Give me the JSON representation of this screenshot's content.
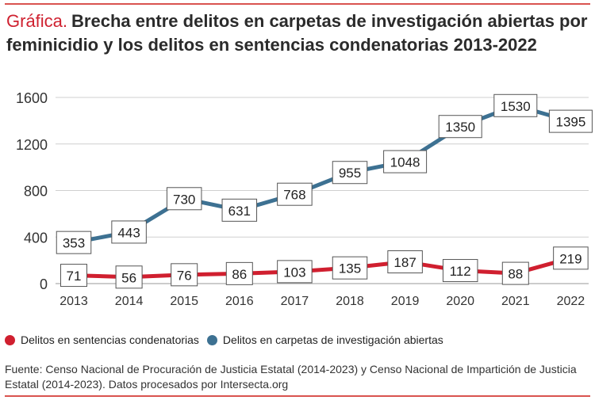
{
  "header": {
    "lead": "Gráfica.",
    "title": "Brecha entre delitos en carpetas de investigación abiertas por feminicidio y los delitos en sentencias condenatorias",
    "years": "2013-2022"
  },
  "colors": {
    "accent": "#cf2130",
    "red_series": "#d01f2f",
    "blue_series": "#3d7192",
    "grid": "#cfcfcf",
    "axis_text": "#333333"
  },
  "chart_data": {
    "type": "line",
    "title": "",
    "xlabel": "",
    "ylabel": "",
    "categories": [
      "2013",
      "2014",
      "2015",
      "2016",
      "2017",
      "2018",
      "2019",
      "2020",
      "2021",
      "2022"
    ],
    "ylim": [
      0,
      1600
    ],
    "yticks": [
      "0",
      "400",
      "800",
      "1200",
      "1600"
    ],
    "grid": true,
    "legend_placement": "bottom-left",
    "series": [
      {
        "name": "Delitos en sentencias condenatorias",
        "color": "#d01f2f",
        "values": [
          71,
          56,
          76,
          86,
          103,
          135,
          187,
          112,
          88,
          219
        ],
        "labels": [
          "71",
          "56",
          "76",
          "86",
          "103",
          "135",
          "187",
          "112",
          "88",
          "219"
        ]
      },
      {
        "name": "Delitos en carpetas de investigación abiertas",
        "color": "#3d7192",
        "values": [
          353,
          443,
          730,
          631,
          768,
          955,
          1048,
          1350,
          1530,
          1395
        ],
        "labels": [
          "353",
          "443",
          "730",
          "631",
          "768",
          "955",
          "1048",
          "1350",
          "1530",
          "1395"
        ]
      }
    ]
  },
  "footer": {
    "source": "Fuente: Censo Nacional de Procuración de Justicia Estatal (2014-2023) y Censo Nacional de Impartición de Justicia Estatal (2014-2023). Datos procesados por Intersecta.org"
  }
}
